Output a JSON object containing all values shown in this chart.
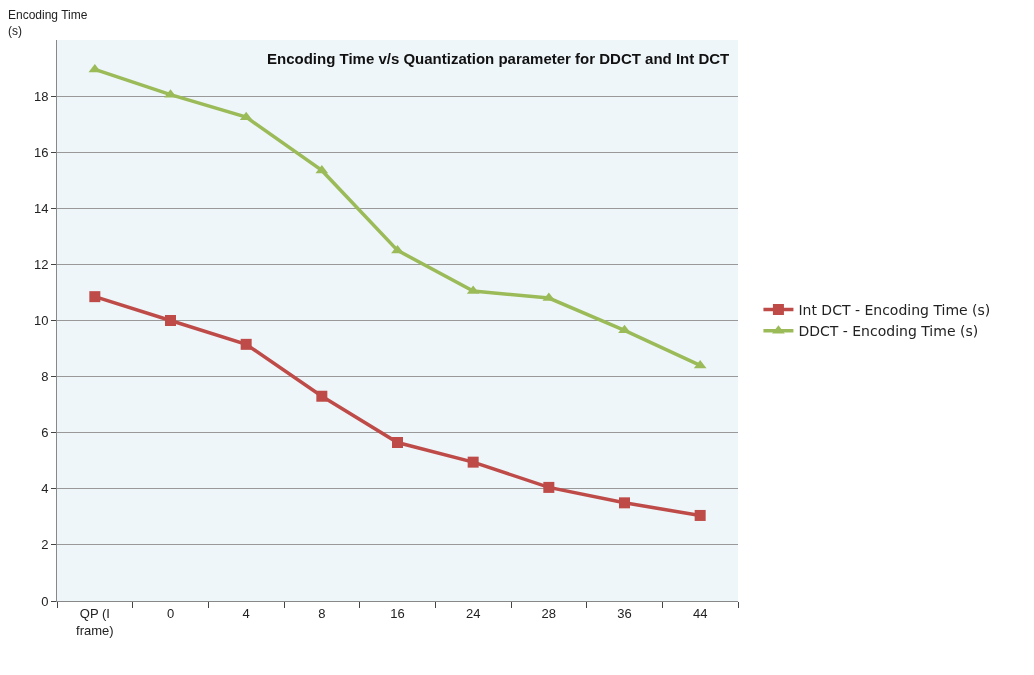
{
  "chart_data": {
    "type": "line",
    "title": "Encoding Time v/s Quantization parameter for DDCT and Int DCT",
    "ylabel": "Encoding Time (s)",
    "categories": [
      "QP (I frame)",
      "0",
      "4",
      "8",
      "16",
      "24",
      "28",
      "36",
      "44"
    ],
    "series": [
      {
        "name": "Int DCT - Encoding Time (s)",
        "color": "#be4b48",
        "marker": "square",
        "values": [
          10.85,
          10.0,
          9.15,
          7.3,
          5.65,
          4.95,
          4.05,
          3.5,
          3.05
        ]
      },
      {
        "name": "DDCT - Encoding Time (s)",
        "color": "#9bbb59",
        "marker": "triangle",
        "values": [
          18.95,
          18.05,
          17.25,
          15.35,
          12.5,
          11.05,
          10.8,
          9.65,
          8.4
        ]
      }
    ],
    "ylim": [
      0,
      20
    ],
    "yticks": [
      0,
      2,
      4,
      6,
      8,
      10,
      12,
      14,
      16,
      18
    ],
    "grid": "y",
    "legend": "right",
    "line_style": "solid"
  }
}
